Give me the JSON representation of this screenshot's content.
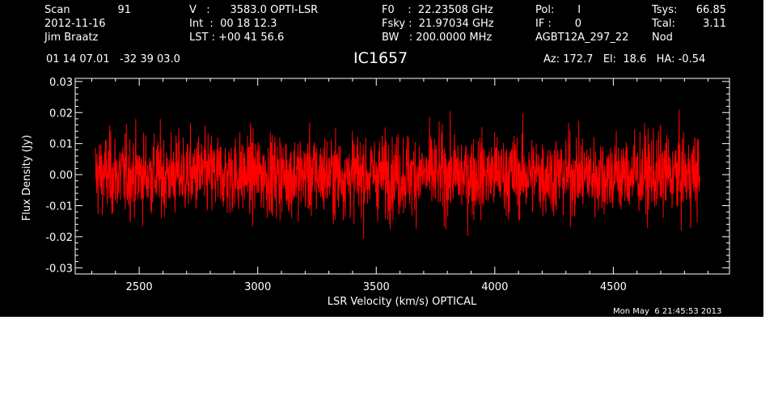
{
  "header": {
    "col1": [
      "Scan",
      "2012-11-16",
      "Jim Braatz"
    ],
    "scan_value": "91",
    "col2": [
      "V   :      3583.0 OPTI-LSR",
      "Int  :  00 18 12.3",
      "LST : +00 41 56.6"
    ],
    "col3": [
      "F0    :  22.23508 GHz",
      "Fsky :  21.97034 GHz",
      "BW   : 200.0000 MHz"
    ],
    "col4": [
      "Pol:       I",
      "IF :       0",
      "AGBT12A_297_22"
    ],
    "col5_labels": [
      "Tsys:",
      "Tcal:",
      "Nod"
    ],
    "col5_values": [
      "66.85",
      "3.11",
      ""
    ],
    "coords": "01 14 07.01   -32 39 03.0",
    "source": "IC1657",
    "azelha": "Az: 172.7   El:  18.6   HA: -0.54",
    "timestamp": "Mon May  6 21:45:53 2013"
  },
  "chart_data": {
    "type": "line",
    "xlabel": "LSR Velocity (km/s) OPTICAL",
    "ylabel": "Flux Density (Jy)",
    "xlim": [
      2230,
      4990
    ],
    "ylim": [
      -0.032,
      0.031
    ],
    "xticks": [
      2500,
      3000,
      3500,
      4000,
      4500
    ],
    "xtick_labels": [
      "2500",
      "3000",
      "3500",
      "4000",
      "4500"
    ],
    "yticks": [
      -0.03,
      -0.02,
      -0.01,
      0.0,
      0.01,
      0.02,
      0.03
    ],
    "ytick_labels": [
      "-0.03",
      "-0.02",
      "-0.01",
      "0.00",
      "0.01",
      "0.02",
      "0.03"
    ],
    "x_minor_step": 100,
    "y_minor_step": 0.002,
    "grid": false,
    "series": [
      {
        "color": "#ff0000",
        "x_range": [
          2315,
          4865
        ],
        "noise_rms": 0.0065,
        "y_min": -0.023,
        "y_max": 0.022
      }
    ]
  },
  "colors": {
    "background": "#000000",
    "axes": "#ffffff",
    "trace": "#ff0000",
    "page": "#ffffff"
  }
}
